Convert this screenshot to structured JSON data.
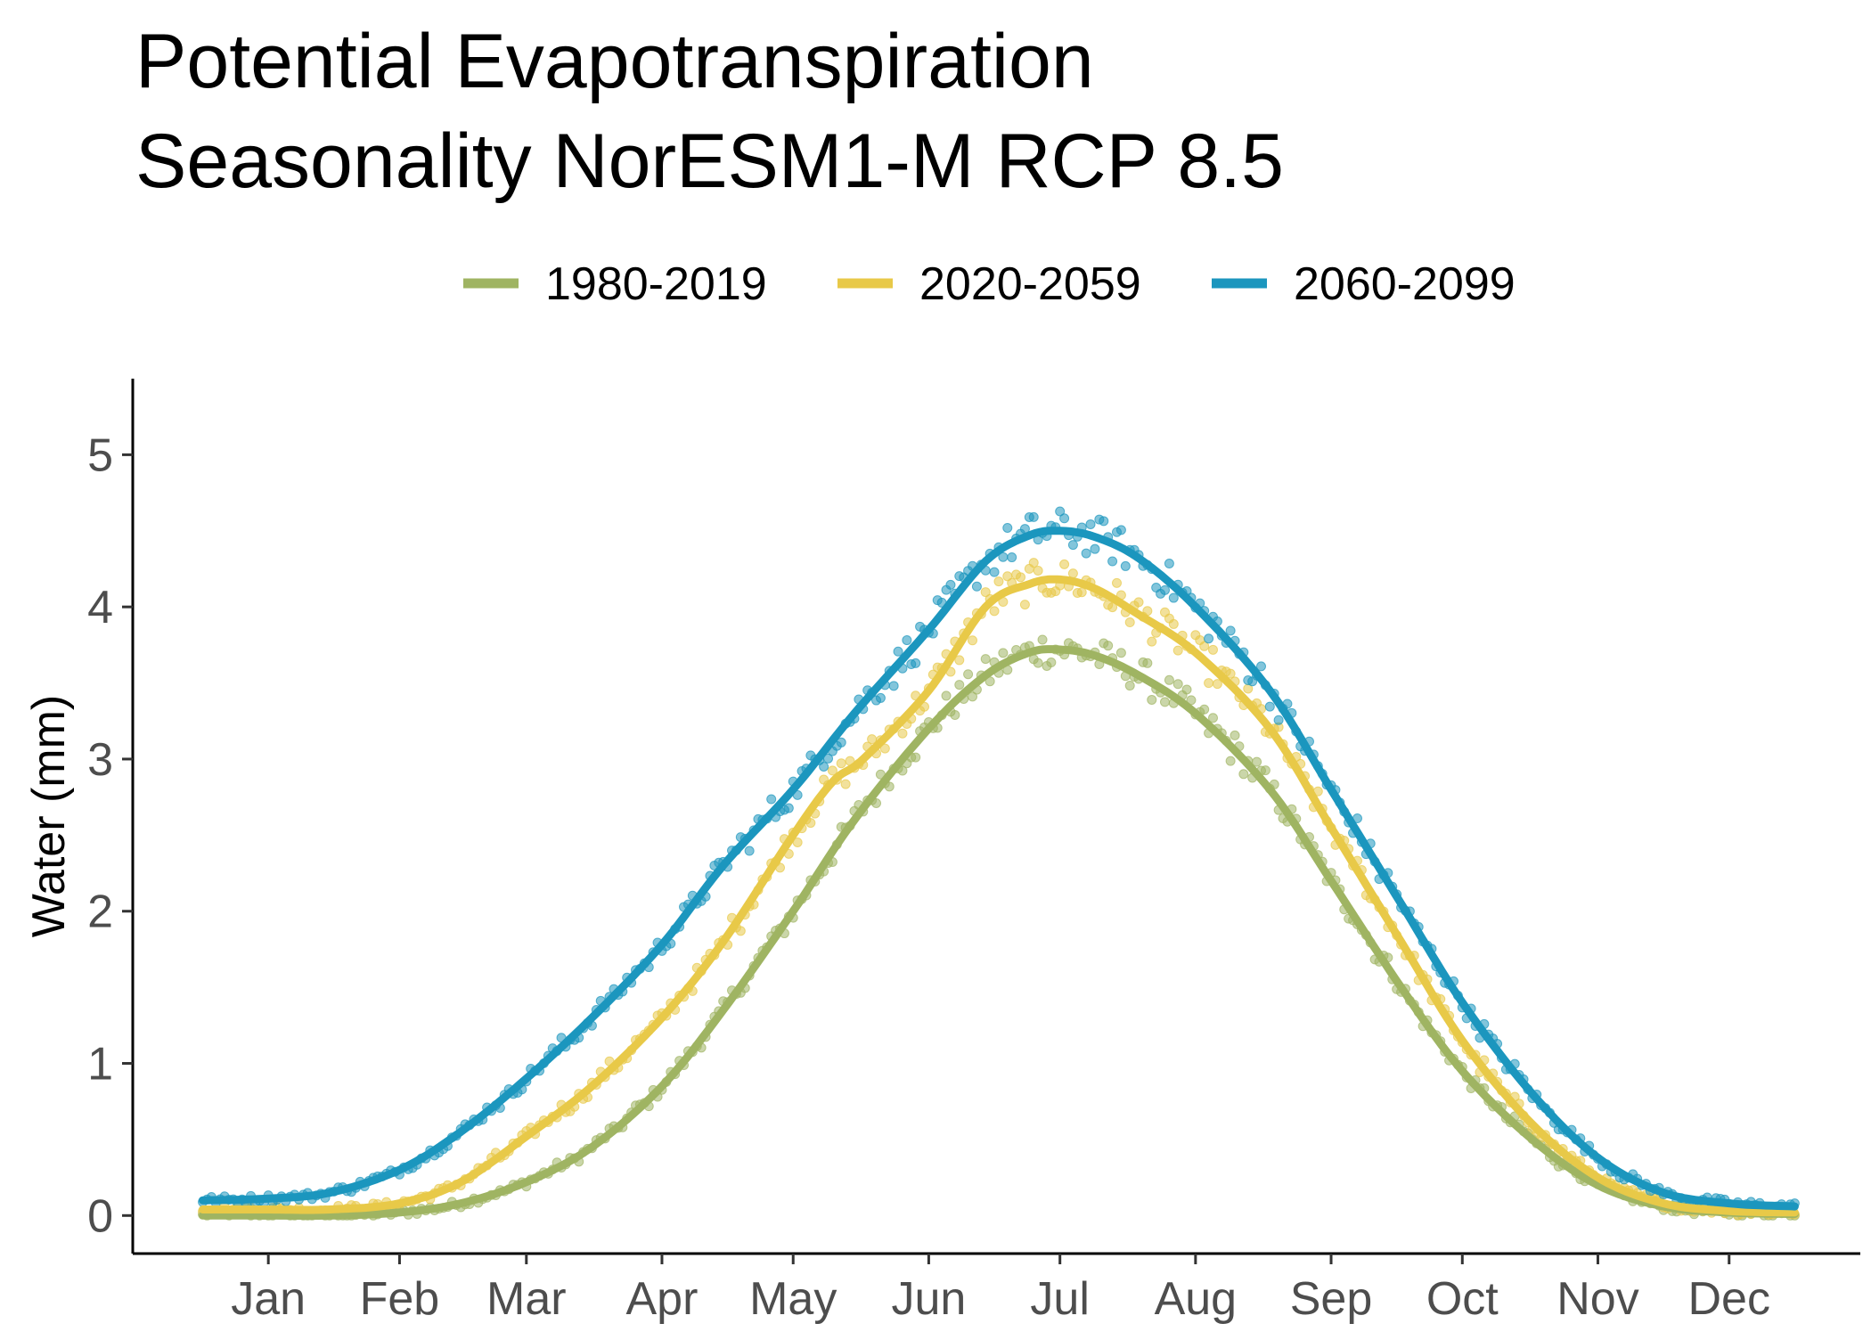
{
  "chart_data": {
    "type": "line",
    "title_lines": [
      "Potential Evapotranspiration",
      "Seasonality NorESM1-M RCP 8.5"
    ],
    "ylabel": "Water (mm)",
    "xlabel": "",
    "ylim": [
      -0.25,
      5.5
    ],
    "yticks": [
      0,
      1,
      2,
      3,
      4,
      5
    ],
    "x_unit": "day of year",
    "xlim": [
      -15,
      380
    ],
    "x_ticks": [
      {
        "label": "Jan",
        "x": 16
      },
      {
        "label": "Feb",
        "x": 46
      },
      {
        "label": "Mar",
        "x": 75
      },
      {
        "label": "Apr",
        "x": 106
      },
      {
        "label": "May",
        "x": 136
      },
      {
        "label": "Jun",
        "x": 167
      },
      {
        "label": "Jul",
        "x": 197
      },
      {
        "label": "Aug",
        "x": 228
      },
      {
        "label": "Sep",
        "x": 259
      },
      {
        "label": "Oct",
        "x": 289
      },
      {
        "label": "Nov",
        "x": 320
      },
      {
        "label": "Dec",
        "x": 350
      }
    ],
    "legend_position": "top",
    "grid": false,
    "series": [
      {
        "name": "1980-2019",
        "color": "#9fb462",
        "x": [
          1,
          15,
          30,
          46,
          60,
          75,
          90,
          106,
          120,
          136,
          150,
          167,
          180,
          190,
          197,
          205,
          215,
          228,
          245,
          259,
          275,
          289,
          305,
          320,
          335,
          350,
          365
        ],
        "values": [
          0.0,
          0.0,
          0.0,
          0.02,
          0.08,
          0.22,
          0.45,
          0.85,
          1.35,
          2.0,
          2.6,
          3.2,
          3.55,
          3.7,
          3.72,
          3.68,
          3.55,
          3.3,
          2.8,
          2.2,
          1.5,
          0.95,
          0.5,
          0.2,
          0.06,
          0.02,
          0.01
        ]
      },
      {
        "name": "2020-2059",
        "color": "#e8c948",
        "x": [
          1,
          15,
          30,
          46,
          60,
          75,
          90,
          106,
          120,
          136,
          145,
          152,
          167,
          180,
          190,
          197,
          205,
          215,
          228,
          245,
          259,
          275,
          289,
          305,
          320,
          335,
          350,
          365
        ],
        "values": [
          0.04,
          0.04,
          0.04,
          0.08,
          0.22,
          0.52,
          0.85,
          1.3,
          1.8,
          2.5,
          2.85,
          3.0,
          3.45,
          4.0,
          4.15,
          4.18,
          4.12,
          3.95,
          3.7,
          3.2,
          2.55,
          1.8,
          1.15,
          0.6,
          0.25,
          0.08,
          0.03,
          0.02
        ]
      },
      {
        "name": "2060-2099",
        "color": "#1b96be",
        "x": [
          1,
          15,
          30,
          46,
          60,
          75,
          90,
          106,
          120,
          136,
          150,
          167,
          180,
          190,
          197,
          205,
          215,
          228,
          245,
          259,
          275,
          289,
          305,
          320,
          335,
          350,
          365
        ],
        "values": [
          0.1,
          0.11,
          0.15,
          0.3,
          0.55,
          0.9,
          1.3,
          1.78,
          2.3,
          2.8,
          3.3,
          3.85,
          4.3,
          4.47,
          4.5,
          4.46,
          4.32,
          4.0,
          3.45,
          2.8,
          2.05,
          1.4,
          0.8,
          0.38,
          0.15,
          0.08,
          0.06
        ]
      }
    ]
  }
}
